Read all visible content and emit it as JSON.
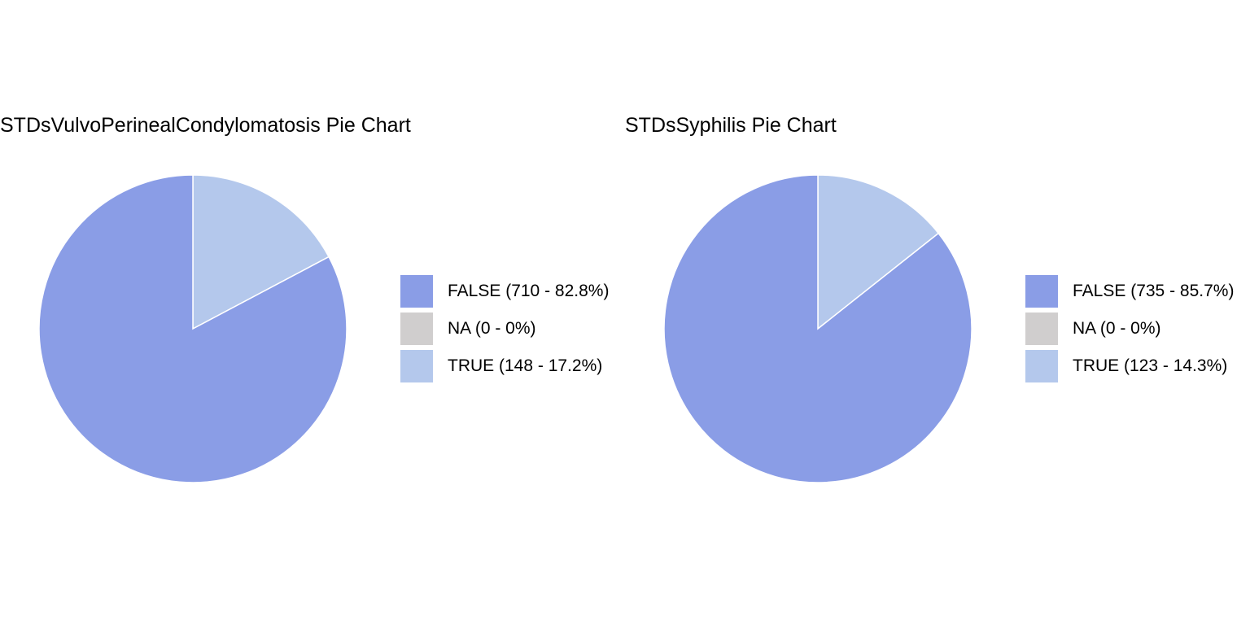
{
  "chart_data": [
    {
      "type": "pie",
      "title": "STDsVulvoPerinealCondylomatosis Pie Chart",
      "categories": [
        "FALSE",
        "NA",
        "TRUE"
      ],
      "values": [
        710,
        0,
        148
      ],
      "legend_labels": [
        "FALSE (710 - 82.8%)",
        "NA (0 - 0%)",
        "TRUE (148 - 17.2%)"
      ],
      "colors": [
        "#8a9de6",
        "#d0cece",
        "#b4c8ec"
      ],
      "legend_position": "right"
    },
    {
      "type": "pie",
      "title": "STDsSyphilis Pie Chart",
      "categories": [
        "FALSE",
        "NA",
        "TRUE"
      ],
      "values": [
        735,
        0,
        123
      ],
      "legend_labels": [
        "FALSE (735 - 85.7%)",
        "NA (0 - 0%)",
        "TRUE (123 - 14.3%)"
      ],
      "colors": [
        "#8a9de6",
        "#d0cece",
        "#b4c8ec"
      ],
      "legend_position": "right"
    }
  ]
}
